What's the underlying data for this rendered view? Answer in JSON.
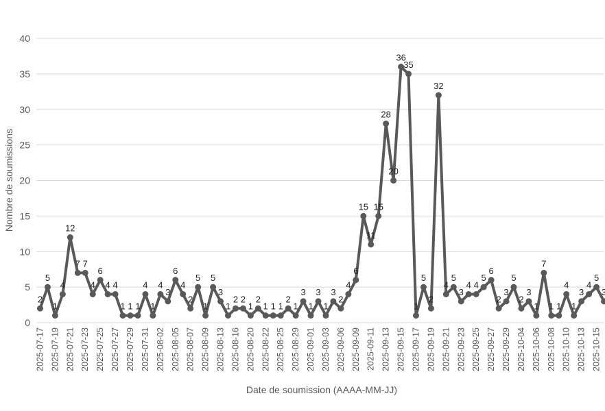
{
  "chart_data": {
    "type": "line",
    "xlabel": "Date de soumission (AAAA-MM-JJ)",
    "ylabel": "Nombre de soumissions",
    "ylim": [
      0,
      40
    ],
    "yticks": [
      0,
      5,
      10,
      15,
      20,
      25,
      30,
      35,
      40
    ],
    "grid": true,
    "x_tick_labels": [
      "2025-07-17",
      "2025-07-19",
      "2025-07-21",
      "2025-07-23",
      "2025-07-25",
      "2025-07-27",
      "2025-07-29",
      "2025-07-31",
      "2025-08-02",
      "2025-08-05",
      "2025-08-07",
      "2025-08-09",
      "2025-08-13",
      "2025-08-16",
      "2025-08-20",
      "2025-08-22",
      "2025-08-25",
      "2025-08-29",
      "2025-09-01",
      "2025-09-03",
      "2025-09-06",
      "2025-09-09",
      "2025-09-11",
      "2025-09-13",
      "2025-09-15",
      "2025-09-17",
      "2025-09-19",
      "2025-09-21",
      "2025-09-23",
      "2025-09-25",
      "2025-09-27",
      "2025-09-29",
      "2025-10-04",
      "2025-10-06",
      "2025-10-08",
      "2025-10-10",
      "2025-10-13",
      "2025-10-15"
    ],
    "values": [
      2,
      5,
      1,
      4,
      12,
      7,
      7,
      4,
      6,
      4,
      4,
      1,
      1,
      1,
      4,
      1,
      4,
      3,
      6,
      4,
      2,
      5,
      1,
      5,
      3,
      1,
      2,
      2,
      1,
      2,
      1,
      1,
      1,
      2,
      1,
      3,
      1,
      3,
      1,
      3,
      2,
      4,
      6,
      15,
      11,
      15,
      28,
      20,
      36,
      35,
      1,
      5,
      2,
      32,
      4,
      5,
      3,
      4,
      4,
      5,
      6,
      2,
      3,
      5,
      2,
      3,
      1,
      7,
      1,
      1,
      4,
      1,
      3,
      4,
      5,
      3
    ],
    "line_color": "#595959"
  }
}
